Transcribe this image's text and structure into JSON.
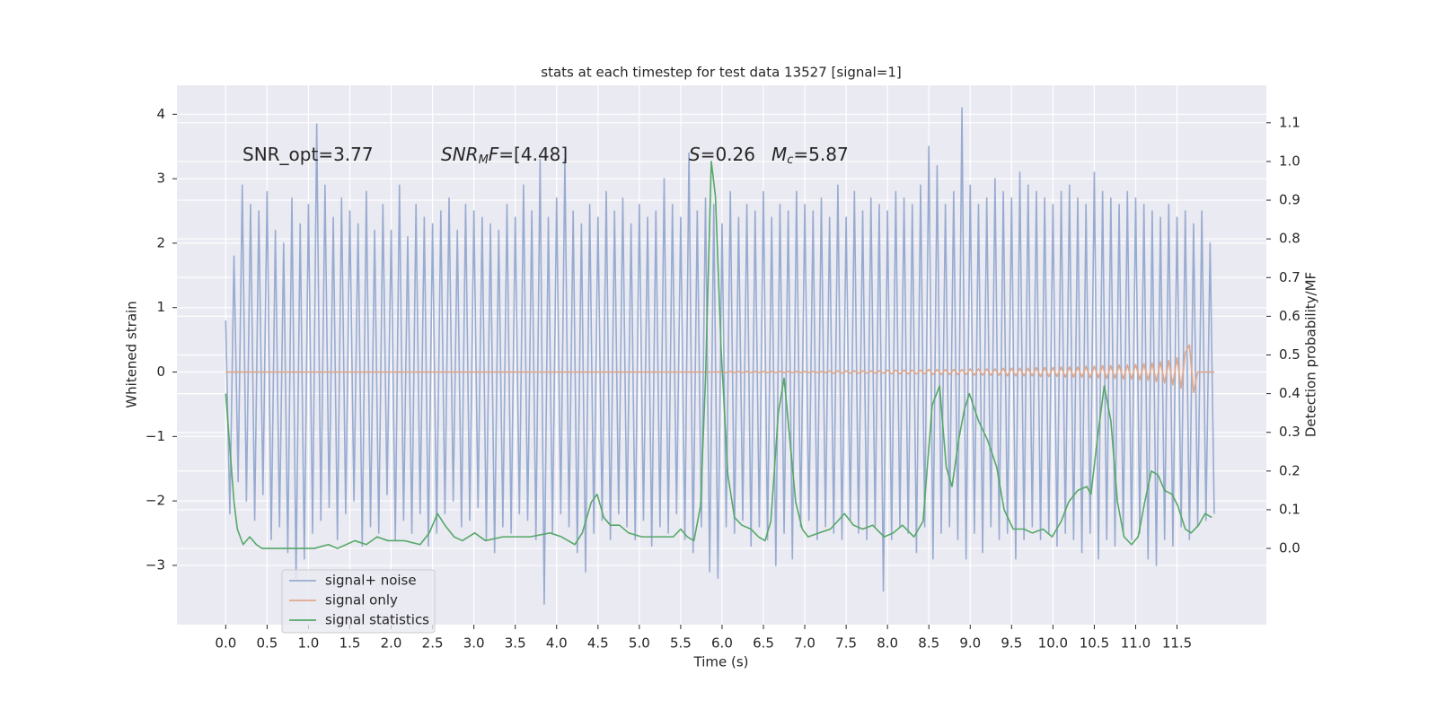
{
  "chart_data": {
    "type": "line",
    "title": "stats at each timestep for test data 13527 [signal=1]",
    "xlabel": "Time (s)",
    "ylabel": "Whitened strain",
    "y2label": "Detection probability/MF",
    "grid": true,
    "legend": "lower left",
    "xlim": [
      -0.59,
      12.58
    ],
    "ylim": [
      -3.92,
      4.45
    ],
    "y2lim": [
      -0.197,
      1.197
    ],
    "xticks": [
      {
        "value": 0,
        "label": "0.0"
      },
      0.5,
      {
        "value": 1,
        "label": "1.0"
      },
      1.5,
      {
        "value": 2,
        "label": "2.0"
      },
      2.5,
      {
        "value": 3,
        "label": "3.0"
      },
      3.5,
      {
        "value": 4,
        "label": "4.0"
      },
      4.5,
      {
        "value": 5,
        "label": "5.0"
      },
      5.5,
      {
        "value": 6,
        "label": "6.0"
      },
      6.5,
      {
        "value": 7,
        "label": "7.0"
      },
      7.5,
      {
        "value": 8,
        "label": "8.0"
      },
      8.5,
      {
        "value": 9,
        "label": "9.0"
      },
      9.5,
      {
        "value": 10,
        "label": "10.0"
      },
      10.5,
      {
        "value": 11,
        "label": "11.0"
      },
      11.5
    ],
    "yticks": [
      {
        "value": -3,
        "label": "−3"
      },
      {
        "value": -2,
        "label": "−2"
      },
      {
        "value": -1,
        "label": "−1"
      },
      0,
      1,
      2,
      3,
      4
    ],
    "y2ticks": [
      {
        "value": 0,
        "label": "0.0"
      },
      0.1,
      0.2,
      0.3,
      0.4,
      0.5,
      0.6,
      0.7,
      0.8,
      0.9,
      {
        "value": 1,
        "label": "1.0"
      },
      1.1
    ],
    "annotations": [
      [
        {
          "text": "SNR_opt=3.77"
        }
      ],
      [
        {
          "text": "SNR",
          "italic": true
        },
        {
          "text": "M",
          "italic": true,
          "sub": true
        },
        {
          "text": "F",
          "italic": true
        },
        {
          "text": "=[4.48]"
        }
      ],
      [
        {
          "text": "S",
          "italic": true
        },
        {
          "text": "=0.26"
        }
      ],
      [
        {
          "text": "M",
          "italic": true
        },
        {
          "text": "c",
          "italic": true,
          "sub": true
        },
        {
          "text": "=5.87"
        }
      ]
    ],
    "x": [
      0,
      0.05,
      0.1,
      0.15,
      0.2,
      0.25,
      0.3,
      0.35,
      0.4,
      0.45,
      0.5,
      0.55,
      0.6,
      0.65,
      0.7,
      0.75,
      0.8,
      0.85,
      0.9,
      0.95,
      1,
      1.05,
      1.1,
      1.15,
      1.2,
      1.25,
      1.3,
      1.35,
      1.4,
      1.45,
      1.5,
      1.55,
      1.6,
      1.65,
      1.7,
      1.75,
      1.8,
      1.85,
      1.9,
      1.95,
      2,
      2.05,
      2.1,
      2.15,
      2.2,
      2.25,
      2.3,
      2.35,
      2.4,
      2.45,
      2.5,
      2.55,
      2.6,
      2.65,
      2.7,
      2.75,
      2.8,
      2.85,
      2.9,
      2.95,
      3,
      3.05,
      3.1,
      3.15,
      3.2,
      3.25,
      3.3,
      3.35,
      3.4,
      3.45,
      3.5,
      3.55,
      3.6,
      3.65,
      3.7,
      3.75,
      3.8,
      3.85,
      3.9,
      3.95,
      4,
      4.05,
      4.1,
      4.15,
      4.2,
      4.25,
      4.3,
      4.35,
      4.4,
      4.45,
      4.5,
      4.55,
      4.6,
      4.65,
      4.7,
      4.75,
      4.8,
      4.85,
      4.9,
      4.95,
      5,
      5.05,
      5.1,
      5.15,
      5.2,
      5.25,
      5.3,
      5.35,
      5.4,
      5.45,
      5.5,
      5.55,
      5.6,
      5.65,
      5.7,
      5.75,
      5.8,
      5.85,
      5.9,
      5.95,
      6,
      6.05,
      6.1,
      6.15,
      6.2,
      6.25,
      6.3,
      6.35,
      6.4,
      6.45,
      6.5,
      6.55,
      6.6,
      6.65,
      6.7,
      6.75,
      6.8,
      6.85,
      6.9,
      6.95,
      7,
      7.05,
      7.1,
      7.15,
      7.2,
      7.25,
      7.3,
      7.35,
      7.4,
      7.45,
      7.5,
      7.55,
      7.6,
      7.65,
      7.7,
      7.75,
      7.8,
      7.85,
      7.9,
      7.95,
      8,
      8.05,
      8.1,
      8.15,
      8.2,
      8.25,
      8.3,
      8.35,
      8.4,
      8.45,
      8.5,
      8.55,
      8.6,
      8.65,
      8.7,
      8.75,
      8.8,
      8.85,
      8.9,
      8.95,
      9,
      9.05,
      9.1,
      9.15,
      9.2,
      9.25,
      9.3,
      9.35,
      9.4,
      9.45,
      9.5,
      9.55,
      9.6,
      9.65,
      9.7,
      9.75,
      9.8,
      9.85,
      9.9,
      9.95,
      10,
      10.05,
      10.1,
      10.15,
      10.2,
      10.25,
      10.3,
      10.35,
      10.4,
      10.45,
      10.5,
      10.55,
      10.6,
      10.65,
      10.7,
      10.75,
      10.8,
      10.85,
      10.9,
      10.95,
      11,
      11.05,
      11.1,
      11.15,
      11.2,
      11.25,
      11.3,
      11.35,
      11.4,
      11.45,
      11.5,
      11.55,
      11.6,
      11.65,
      11.7,
      11.75,
      11.8,
      11.85,
      11.9,
      11.95
    ],
    "series": [
      {
        "name": "signal+ noise",
        "color": "#98abd0",
        "values": [
          0.8,
          -2.2,
          1.8,
          -1.7,
          2.9,
          -2.0,
          2.6,
          -2.3,
          2.5,
          -1.9,
          2.8,
          -2.6,
          2.2,
          -2.4,
          2.0,
          -2.8,
          2.7,
          -3.2,
          2.3,
          -2.9,
          2.6,
          -2.5,
          3.85,
          -2.3,
          2.9,
          -2.1,
          2.4,
          -2.6,
          2.7,
          -2.2,
          2.5,
          -2.0,
          2.3,
          -2.7,
          2.8,
          -2.4,
          2.2,
          -2.5,
          2.6,
          -1.9,
          2.2,
          -2.6,
          2.9,
          -2.3,
          2.1,
          -2.5,
          2.6,
          -2.2,
          2.4,
          -2.7,
          2.3,
          -2.5,
          2.5,
          -2.2,
          2.7,
          -2.0,
          2.2,
          -2.4,
          2.6,
          -2.3,
          2.5,
          -2.1,
          2.4,
          -2.6,
          2.3,
          -2.8,
          2.2,
          -2.4,
          2.6,
          -2.5,
          2.4,
          -2.2,
          2.9,
          -2.3,
          2.5,
          -2.6,
          3.3,
          -3.6,
          2.4,
          -2.5,
          2.7,
          -2.2,
          3.3,
          -2.4,
          2.5,
          -2.8,
          2.3,
          -3.1,
          2.6,
          -2.5,
          2.4,
          -2.3,
          2.8,
          -2.6,
          2.5,
          -2.2,
          2.7,
          -2.4,
          2.3,
          -2.6,
          2.6,
          -2.3,
          2.4,
          -2.7,
          2.5,
          -2.4,
          3.0,
          -2.5,
          2.6,
          -2.2,
          2.4,
          -2.6,
          3.4,
          -2.8,
          2.5,
          -2.4,
          2.7,
          -3.1,
          2.6,
          -3.2,
          2.3,
          -2.4,
          2.8,
          -2.5,
          2.4,
          -2.3,
          2.6,
          -2.7,
          2.5,
          -2.4,
          2.8,
          -2.6,
          2.4,
          -3.0,
          2.6,
          -2.5,
          2.5,
          -2.9,
          2.8,
          -2.4,
          2.6,
          -2.3,
          2.5,
          -2.6,
          2.7,
          -2.4,
          2.4,
          -2.5,
          2.9,
          -2.6,
          2.4,
          -2.3,
          2.8,
          -2.5,
          2.5,
          -2.6,
          2.7,
          -2.4,
          2.6,
          -3.4,
          2.5,
          -2.6,
          2.8,
          -2.4,
          2.7,
          -2.5,
          2.6,
          -2.8,
          2.9,
          -2.4,
          3.5,
          -2.9,
          3.2,
          -2.5,
          2.6,
          -2.4,
          2.8,
          -2.6,
          4.1,
          -2.9,
          2.9,
          -2.5,
          2.6,
          -2.8,
          2.7,
          -2.4,
          3.0,
          -2.6,
          2.8,
          -2.5,
          2.7,
          -2.9,
          3.1,
          -2.6,
          2.9,
          -2.4,
          2.8,
          -2.6,
          2.7,
          -2.5,
          2.6,
          -2.7,
          2.8,
          -2.5,
          2.9,
          -2.6,
          2.7,
          -2.8,
          2.6,
          -2.5,
          3.1,
          -2.9,
          2.8,
          -2.6,
          2.7,
          -2.7,
          2.6,
          -2.5,
          2.8,
          -2.6,
          2.7,
          -2.5,
          2.6,
          -2.9,
          2.5,
          -3.0,
          2.4,
          -2.6,
          2.6,
          -2.7,
          2.4,
          -2.4,
          2.5,
          -2.6,
          2.3,
          -2.4,
          2.5,
          -2.3,
          2.0,
          -2.2
        ]
      },
      {
        "name": "signal only",
        "color": "#e0a789",
        "values": [
          0,
          0,
          0,
          0,
          0,
          0,
          0,
          0,
          0,
          0,
          0,
          0,
          0,
          0,
          0,
          0,
          0,
          0,
          0,
          0,
          0,
          0,
          0,
          0,
          0,
          0,
          0,
          0,
          0,
          0,
          0,
          0,
          0,
          0,
          0,
          0,
          0,
          0,
          0,
          0,
          0,
          0,
          0,
          0,
          0,
          0,
          0,
          0,
          0,
          0,
          0,
          0,
          0,
          0,
          0,
          0,
          0,
          0,
          0,
          0,
          0,
          0,
          0,
          0,
          0,
          0,
          0,
          0,
          0,
          0,
          0,
          0,
          0,
          0,
          0,
          0,
          0,
          0,
          0,
          0,
          0,
          0,
          0,
          0,
          0,
          0,
          0,
          0,
          0,
          0,
          0,
          0,
          0,
          0,
          0,
          0,
          0,
          0,
          0,
          0,
          0,
          0,
          0,
          0,
          0,
          0,
          0,
          0,
          0,
          0,
          0,
          0,
          0,
          0,
          0,
          0,
          0,
          0,
          0,
          0,
          0.01,
          -0.01,
          0.01,
          -0.01,
          0.01,
          -0.01,
          0.01,
          -0.01,
          0.01,
          -0.01,
          0.01,
          -0.01,
          0.01,
          -0.01,
          0.01,
          -0.01,
          0.01,
          -0.01,
          0.01,
          -0.01,
          0.01,
          -0.01,
          0.01,
          -0.01,
          0.01,
          -0.01,
          0.02,
          -0.02,
          0.02,
          -0.02,
          0.02,
          -0.02,
          0.02,
          -0.02,
          0.02,
          -0.02,
          0.02,
          -0.02,
          0.02,
          -0.02,
          0.03,
          -0.03,
          0.03,
          -0.03,
          0.03,
          -0.03,
          0.03,
          -0.03,
          0.03,
          -0.03,
          0.04,
          -0.04,
          0.04,
          -0.04,
          0.04,
          -0.04,
          0.04,
          -0.04,
          0.04,
          -0.04,
          0.05,
          -0.05,
          0.05,
          -0.05,
          0.05,
          -0.05,
          0.05,
          -0.05,
          0.06,
          -0.06,
          0.06,
          -0.06,
          0.06,
          -0.06,
          0.06,
          -0.06,
          0.07,
          -0.07,
          0.07,
          -0.07,
          0.07,
          -0.07,
          0.08,
          -0.08,
          0.08,
          -0.08,
          0.08,
          -0.08,
          0.09,
          -0.09,
          0.09,
          -0.09,
          0.1,
          -0.1,
          0.1,
          -0.1,
          0.11,
          -0.11,
          0.11,
          -0.11,
          0.12,
          -0.12,
          0.13,
          -0.13,
          0.14,
          -0.15,
          0.16,
          -0.17,
          0.18,
          -0.2,
          0.22,
          -0.25,
          0.3,
          0.42,
          -0.32,
          0,
          0,
          0,
          0,
          0
        ]
      },
      {
        "name": "signal statistics",
        "color": "#55a868",
        "axis": "y2",
        "x": [
          0,
          0.1,
          0.14,
          0.21,
          0.29,
          0.37,
          0.44,
          0.59,
          0.75,
          0.91,
          1.07,
          1.24,
          1.35,
          1.56,
          1.7,
          1.83,
          1.96,
          2.16,
          2.35,
          2.46,
          2.56,
          2.65,
          2.76,
          2.86,
          3.01,
          3.14,
          3.35,
          3.68,
          3.92,
          4.06,
          4.22,
          4.31,
          4.42,
          4.49,
          4.57,
          4.65,
          4.76,
          4.87,
          5.03,
          5.25,
          5.41,
          5.5,
          5.58,
          5.66,
          5.74,
          5.8,
          5.87,
          5.92,
          5.99,
          6.07,
          6.15,
          6.24,
          6.35,
          6.44,
          6.52,
          6.59,
          6.68,
          6.75,
          6.82,
          6.89,
          6.97,
          7.04,
          7.17,
          7.31,
          7.48,
          7.59,
          7.7,
          7.82,
          7.96,
          8.07,
          8.18,
          8.32,
          8.43,
          8.54,
          8.63,
          8.71,
          8.78,
          8.86,
          8.93,
          8.99,
          9.1,
          9.21,
          9.32,
          9.41,
          9.52,
          9.65,
          9.75,
          9.88,
          9.99,
          10.1,
          10.19,
          10.3,
          10.41,
          10.46,
          10.53,
          10.62,
          10.7,
          10.78,
          10.86,
          10.95,
          11.03,
          11.11,
          11.19,
          11.27,
          11.35,
          11.44,
          11.51,
          11.6,
          11.67,
          11.76,
          11.84,
          11.92
        ],
        "values": [
          0.4,
          0.12,
          0.05,
          0.01,
          0.03,
          0.01,
          0,
          0,
          0,
          0,
          0,
          0.01,
          0,
          0.02,
          0.01,
          0.03,
          0.02,
          0.02,
          0.01,
          0.04,
          0.09,
          0.06,
          0.03,
          0.02,
          0.04,
          0.02,
          0.03,
          0.03,
          0.04,
          0.03,
          0.01,
          0.04,
          0.12,
          0.14,
          0.08,
          0.06,
          0.06,
          0.04,
          0.03,
          0.03,
          0.03,
          0.05,
          0.03,
          0.02,
          0.11,
          0.44,
          1.0,
          0.91,
          0.51,
          0.19,
          0.08,
          0.06,
          0.05,
          0.03,
          0.02,
          0.07,
          0.35,
          0.44,
          0.28,
          0.12,
          0.05,
          0.03,
          0.04,
          0.05,
          0.09,
          0.06,
          0.05,
          0.06,
          0.03,
          0.04,
          0.06,
          0.03,
          0.07,
          0.37,
          0.42,
          0.21,
          0.16,
          0.28,
          0.36,
          0.4,
          0.33,
          0.28,
          0.21,
          0.1,
          0.05,
          0.05,
          0.04,
          0.05,
          0.03,
          0.07,
          0.12,
          0.15,
          0.16,
          0.14,
          0.27,
          0.42,
          0.33,
          0.12,
          0.03,
          0.01,
          0.03,
          0.12,
          0.2,
          0.19,
          0.15,
          0.14,
          0.11,
          0.05,
          0.04,
          0.06,
          0.09,
          0.08
        ]
      }
    ]
  }
}
